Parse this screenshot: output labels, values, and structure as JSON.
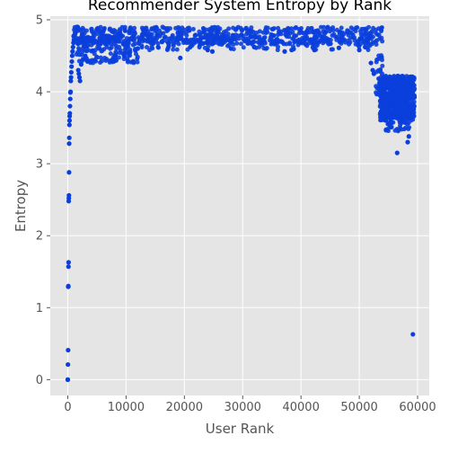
{
  "chart_data": {
    "type": "scatter",
    "title": "Recommender System Entropy by Rank",
    "xlabel": "User Rank",
    "ylabel": "Entropy",
    "xlim": [
      -3000,
      62000
    ],
    "ylim": [
      -0.22,
      5.05
    ],
    "xticks": [
      "0",
      "10000",
      "20000",
      "30000",
      "40000",
      "50000",
      "60000"
    ],
    "yticks": [
      "0",
      "1",
      "2",
      "3",
      "4",
      "5"
    ],
    "grid": true,
    "point_color": "#0b3fdb",
    "background_color": "#e5e5e5",
    "series": [
      {
        "points": [
          [
            0,
            0.0
          ],
          [
            0,
            0.0
          ],
          [
            30,
            0.21
          ],
          [
            60,
            0.41
          ],
          [
            80,
            1.29
          ],
          [
            100,
            1.3
          ],
          [
            120,
            1.57
          ],
          [
            140,
            1.63
          ],
          [
            160,
            2.48
          ],
          [
            180,
            2.52
          ],
          [
            200,
            2.56
          ],
          [
            220,
            2.88
          ],
          [
            240,
            3.28
          ],
          [
            260,
            3.36
          ],
          [
            280,
            3.54
          ],
          [
            300,
            3.6
          ],
          [
            320,
            3.66
          ],
          [
            350,
            3.7
          ],
          [
            380,
            3.8
          ],
          [
            420,
            3.9
          ],
          [
            450,
            3.99
          ],
          [
            480,
            4.0
          ],
          [
            520,
            4.15
          ],
          [
            560,
            4.2
          ],
          [
            600,
            4.27
          ],
          [
            650,
            4.35
          ],
          [
            700,
            4.42
          ],
          [
            760,
            4.5
          ],
          [
            820,
            4.56
          ],
          [
            900,
            4.62
          ],
          [
            980,
            4.68
          ],
          [
            1050,
            4.72
          ],
          [
            1150,
            4.78
          ],
          [
            1250,
            4.82
          ],
          [
            1400,
            4.86
          ],
          [
            1550,
            4.9
          ],
          [
            1700,
            4.9
          ],
          [
            1800,
            4.3
          ],
          [
            1900,
            4.25
          ],
          [
            2000,
            4.2
          ],
          [
            2100,
            4.15
          ],
          [
            2300,
            4.38
          ],
          [
            2600,
            4.45
          ],
          [
            3000,
            4.5
          ],
          [
            3400,
            4.42
          ],
          [
            4600,
            4.44
          ],
          [
            7800,
            4.45
          ],
          [
            12000,
            4.6
          ],
          [
            15500,
            4.62
          ],
          [
            19300,
            4.47
          ],
          [
            21000,
            4.62
          ],
          [
            24000,
            4.58
          ],
          [
            24800,
            4.56
          ],
          [
            28000,
            4.6
          ],
          [
            32000,
            4.62
          ],
          [
            34000,
            4.6
          ],
          [
            37200,
            4.56
          ],
          [
            38400,
            4.58
          ],
          [
            42300,
            4.58
          ],
          [
            46500,
            4.61
          ],
          [
            50000,
            4.58
          ],
          [
            51000,
            4.62
          ],
          [
            52000,
            4.4
          ],
          [
            52300,
            4.3
          ],
          [
            52500,
            4.25
          ],
          [
            56500,
            3.15
          ],
          [
            58300,
            3.3
          ],
          [
            58500,
            3.38
          ],
          [
            59200,
            0.63
          ]
        ],
        "bands": [
          {
            "x": [
              1000,
              52800
            ],
            "y": [
              4.66,
              4.9
            ],
            "n": 650
          },
          {
            "x": [
              1500,
              12000
            ],
            "y": [
              4.4,
              4.78
            ],
            "n": 160
          },
          {
            "x": [
              12000,
              52000
            ],
            "y": [
              4.58,
              4.78
            ],
            "n": 120
          },
          {
            "x": [
              52800,
              54000
            ],
            "y": [
              3.95,
              4.9
            ],
            "n": 45
          },
          {
            "x": [
              53500,
              59500
            ],
            "y": [
              3.6,
              4.22
            ],
            "n": 650
          },
          {
            "x": [
              54500,
              59000
            ],
            "y": [
              3.45,
              3.8
            ],
            "n": 80
          }
        ]
      }
    ]
  }
}
